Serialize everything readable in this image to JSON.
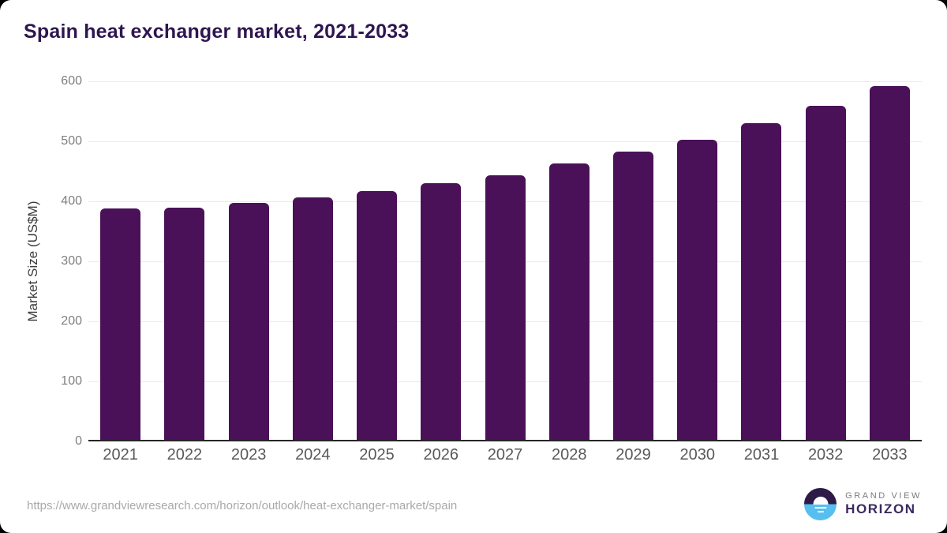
{
  "title": "Spain heat exchanger market, 2021-2033",
  "chart_data": {
    "type": "bar",
    "title": "Spain heat exchanger market, 2021-2033",
    "categories": [
      "2021",
      "2022",
      "2023",
      "2024",
      "2025",
      "2026",
      "2027",
      "2028",
      "2029",
      "2030",
      "2031",
      "2032",
      "2033"
    ],
    "values": [
      386,
      387,
      395,
      404,
      414,
      428,
      441,
      460,
      480,
      500,
      528,
      557,
      590
    ],
    "xlabel": "",
    "ylabel": "Market Size (US$M)",
    "ylim": [
      0,
      600
    ],
    "yticks": [
      0,
      100,
      200,
      300,
      400,
      500,
      600
    ],
    "grid": "horizontal",
    "legend": "none",
    "bar_color": "#4a1158"
  },
  "footer": {
    "source_url": "https://www.grandviewresearch.com/horizon/outlook/heat-exchanger-market/spain",
    "logo": {
      "brand_top": "GRAND VIEW",
      "brand_bottom": "HORIZON"
    }
  },
  "colors": {
    "title": "#2e1650",
    "bar": "#4a1158",
    "axis_line": "#262626",
    "gridline": "#e9e9e9",
    "y_tick_label": "#7f7f7f",
    "x_tick_label": "#595959",
    "url_text": "#a9a9a9",
    "logo_purple": "#2e1a47",
    "logo_blue": "#56bfef"
  }
}
